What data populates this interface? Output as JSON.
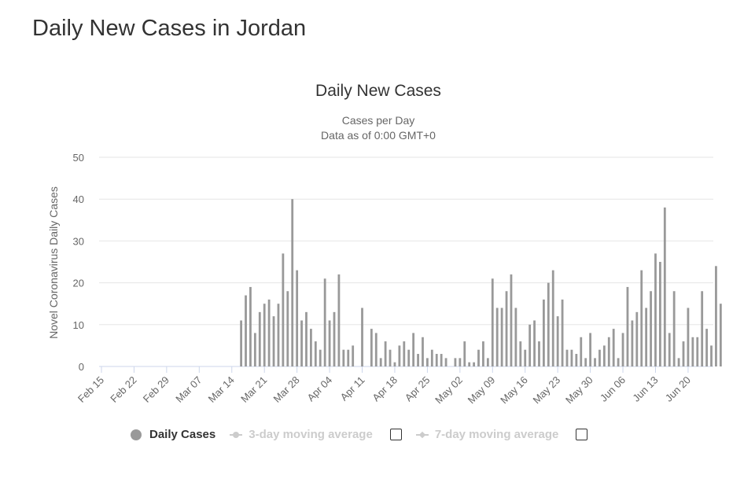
{
  "page": {
    "title": "Daily New Cases in Jordan"
  },
  "legend": {
    "items": [
      {
        "label": "Daily Cases",
        "active": true
      },
      {
        "label": "3-day moving average",
        "active": false
      },
      {
        "label": "7-day moving average",
        "active": false
      }
    ]
  },
  "chart_data": {
    "type": "bar",
    "title": "Daily New Cases",
    "subtitle_line1": "Cases per Day",
    "subtitle_line2": "Data as of 0:00 GMT+0",
    "xlabel": "",
    "ylabel": "Novel Coronavirus Daily Cases",
    "ylim": [
      0,
      50
    ],
    "yticks": [
      0,
      10,
      20,
      30,
      40,
      50
    ],
    "grid": true,
    "colors": {
      "bar": "#999999",
      "grid": "#e6e6e6",
      "axis": "#ccd6eb",
      "text": "#666666"
    },
    "x_tick_labels": [
      "Feb 15",
      "Feb 22",
      "Feb 29",
      "Mar 07",
      "Mar 14",
      "Mar 21",
      "Mar 28",
      "Apr 04",
      "Apr 11",
      "Apr 18",
      "Apr 25",
      "May 02",
      "May 09",
      "May 16",
      "May 23",
      "May 30",
      "Jun 06",
      "Jun 13",
      "Jun 20"
    ],
    "x_tick_step_days": 7,
    "first_date": "Feb 15",
    "series": [
      {
        "name": "Daily Cases",
        "values": [
          0,
          0,
          0,
          0,
          0,
          0,
          0,
          0,
          0,
          0,
          0,
          0,
          0,
          0,
          0,
          0,
          0,
          0,
          0,
          0,
          0,
          0,
          0,
          0,
          0,
          0,
          0,
          0,
          0,
          0,
          11,
          17,
          19,
          8,
          13,
          15,
          16,
          12,
          15,
          27,
          18,
          40,
          23,
          11,
          13,
          9,
          6,
          4,
          21,
          11,
          13,
          22,
          4,
          4,
          5,
          0,
          14,
          0,
          9,
          8,
          2,
          6,
          4,
          1,
          5,
          6,
          4,
          8,
          3,
          7,
          2,
          4,
          3,
          3,
          2,
          0,
          2,
          2,
          6,
          1,
          1,
          4,
          6,
          2,
          21,
          14,
          14,
          18,
          22,
          14,
          6,
          4,
          10,
          11,
          6,
          16,
          20,
          23,
          12,
          16,
          4,
          4,
          3,
          7,
          2,
          8,
          2,
          4,
          5,
          7,
          9,
          2,
          8,
          19,
          11,
          13,
          23,
          14,
          18,
          27,
          25,
          38,
          8,
          18,
          2,
          6,
          14,
          7,
          7,
          18,
          9,
          5,
          24,
          15
        ]
      }
    ]
  }
}
